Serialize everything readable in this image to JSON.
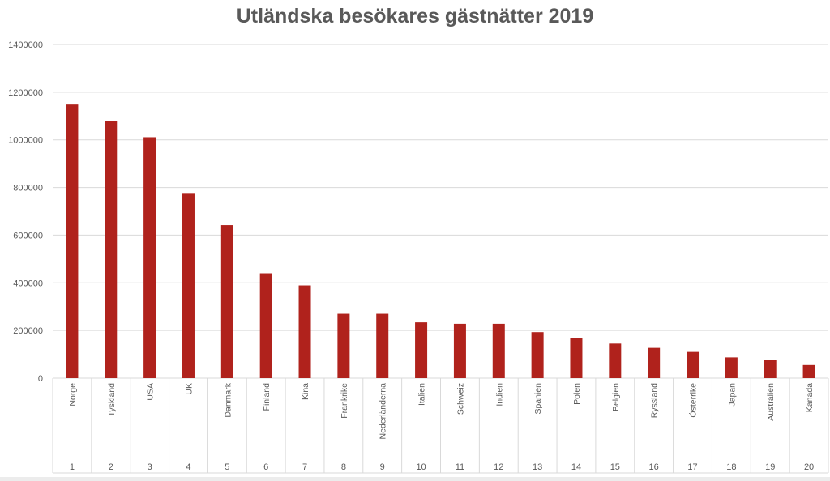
{
  "chart_data": {
    "type": "bar",
    "title": "Utländska besökares gästnätter 2019",
    "categories": [
      "Norge",
      "Tyskland",
      "USA",
      "UK",
      "Danmark",
      "Finland",
      "Kina",
      "Frankrike",
      "Nederländerna",
      "Italien",
      "Schweiz",
      "Indien",
      "Spanien",
      "Polen",
      "Belgien",
      "Ryssland",
      "Österrike",
      "Japan",
      "Australien",
      "Kanada"
    ],
    "ranks": [
      "1",
      "2",
      "3",
      "4",
      "5",
      "6",
      "7",
      "8",
      "9",
      "10",
      "11",
      "12",
      "13",
      "14",
      "15",
      "16",
      "17",
      "18",
      "19",
      "20"
    ],
    "values": [
      1148000,
      1078000,
      1011000,
      777000,
      642000,
      440000,
      389000,
      270000,
      270000,
      234000,
      228000,
      228000,
      193000,
      168000,
      145000,
      127000,
      110000,
      87000,
      75000,
      55000
    ],
    "ylim": [
      0,
      1400000
    ],
    "yticks": [
      "0",
      "200000",
      "400000",
      "600000",
      "800000",
      "1000000",
      "1200000",
      "1400000"
    ],
    "grid": true,
    "colors": {
      "bar": "#b0221c",
      "grid": "#d9d9d9",
      "text": "#595959"
    }
  }
}
